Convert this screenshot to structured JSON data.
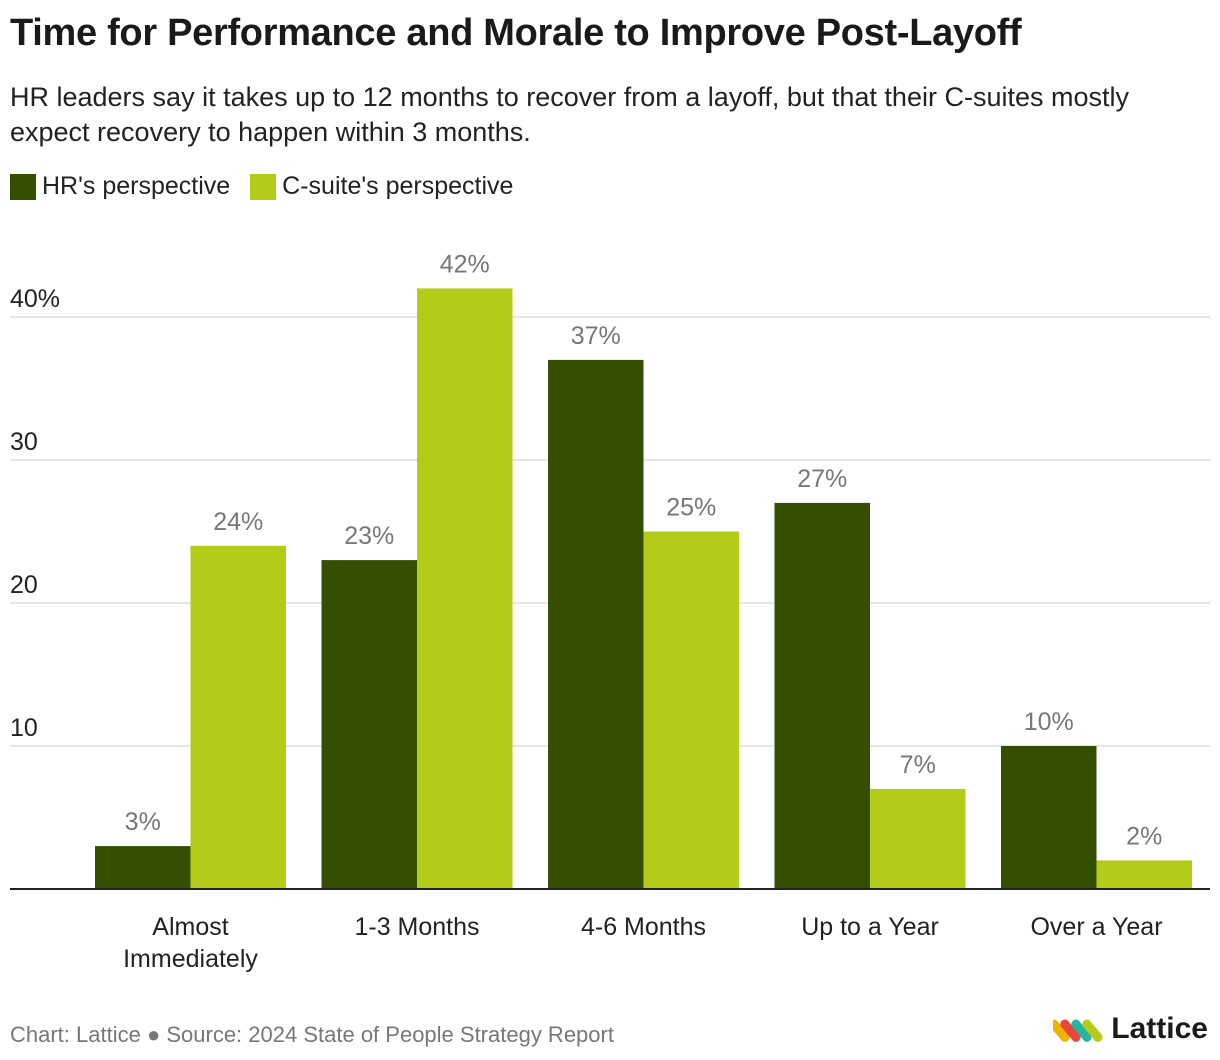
{
  "header": {
    "title": "Time for Performance and Morale to Improve Post-Layoff",
    "subtitle": "HR leaders say it takes up to 12 months to recover from a layoff, but that their C-suites mostly expect recovery to happen within 3 months."
  },
  "colors": {
    "hr": "#354f00",
    "csuite": "#b3cc1a",
    "grid": "#dddddd",
    "axis": "#222222",
    "data_label": "#777777"
  },
  "chart_data": {
    "type": "bar",
    "categories": [
      "Almost Immediately",
      "1-3 Months",
      "4-6 Months",
      "Up to a Year",
      "Over a Year"
    ],
    "category_lines": [
      [
        "Almost",
        "Immediately"
      ],
      [
        "1-3 Months"
      ],
      [
        "4-6 Months"
      ],
      [
        "Up to a Year"
      ],
      [
        "Over a Year"
      ]
    ],
    "series": [
      {
        "name": "HR's perspective",
        "values": [
          3,
          23,
          37,
          27,
          10
        ],
        "labels": [
          "3%",
          "23%",
          "37%",
          "27%",
          "10%"
        ]
      },
      {
        "name": "C-suite's perspective",
        "values": [
          24,
          42,
          25,
          7,
          2
        ],
        "labels": [
          "24%",
          "42%",
          "25%",
          "7%",
          "2%"
        ]
      }
    ],
    "y_ticks": [
      10,
      20,
      30,
      40
    ],
    "y_tick_labels": [
      "10",
      "20",
      "30",
      "40%"
    ],
    "ylim": [
      0,
      43
    ],
    "grid": true,
    "legend_position": "top-left"
  },
  "footer": {
    "source": "Chart: Lattice ● Source: 2024 State of People Strategy Report",
    "brand": "Lattice"
  }
}
